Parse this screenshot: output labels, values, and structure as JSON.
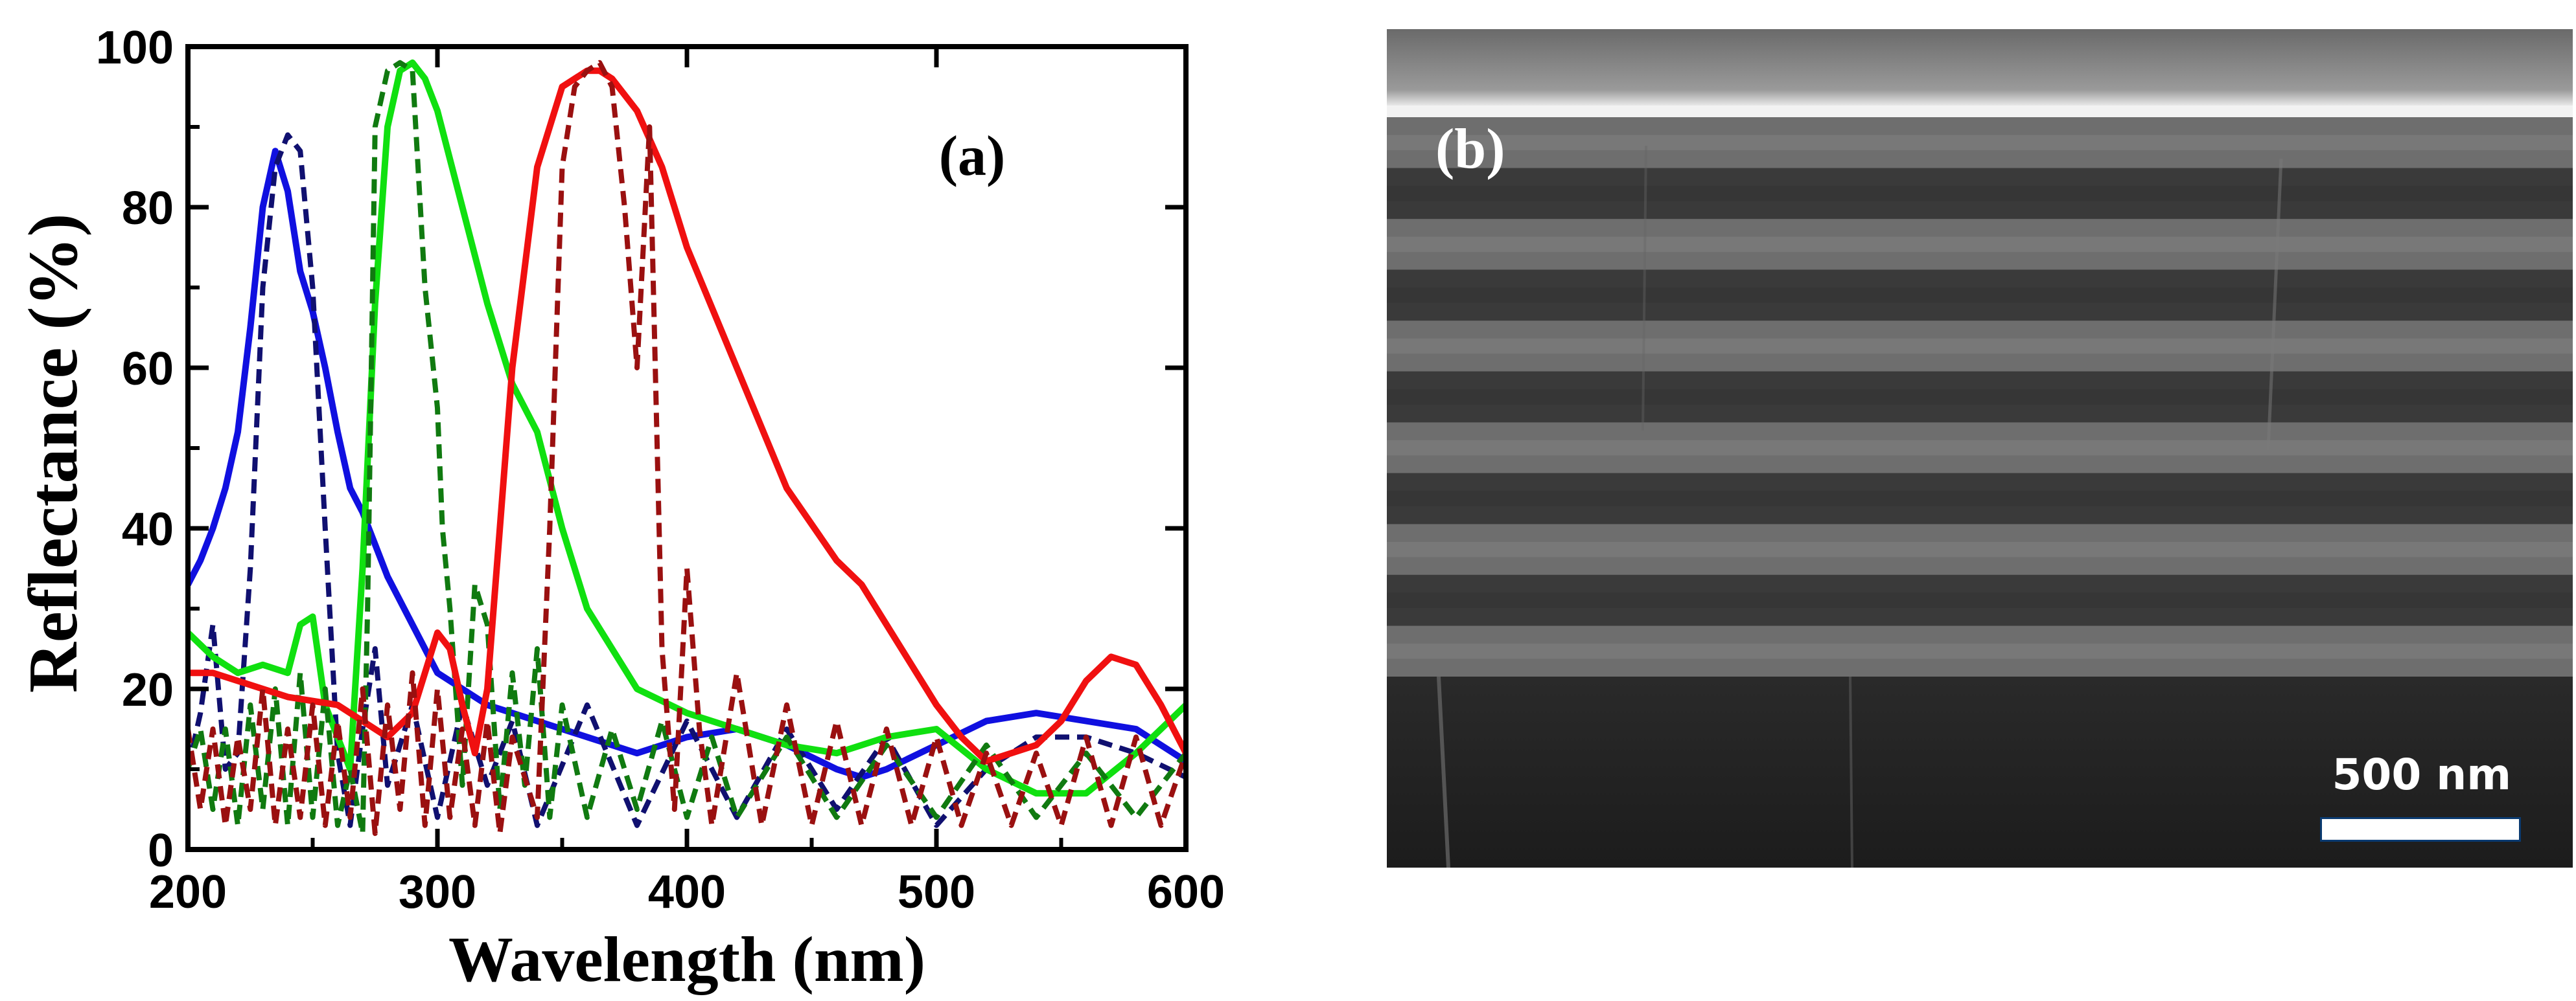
{
  "chart_data": {
    "type": "line",
    "title": "",
    "panel_label": "(a)",
    "xlabel": "Wavelength (nm)",
    "ylabel": "Reflectance (%)",
    "xlim": [
      200,
      600
    ],
    "ylim": [
      0,
      100
    ],
    "xticks": [
      200,
      300,
      400,
      500,
      600
    ],
    "yticks": [
      0,
      20,
      40,
      60,
      80,
      100
    ],
    "legend": "none",
    "series": [
      {
        "name": "blue measured",
        "color": "#1010e0",
        "style": "solid",
        "x": [
          200,
          205,
          210,
          215,
          220,
          225,
          230,
          235,
          240,
          245,
          250,
          255,
          260,
          265,
          270,
          275,
          280,
          290,
          300,
          320,
          340,
          360,
          380,
          400,
          420,
          440,
          460,
          470,
          480,
          500,
          520,
          540,
          560,
          580,
          600
        ],
        "y": [
          33,
          36,
          40,
          45,
          52,
          65,
          80,
          87,
          82,
          72,
          67,
          60,
          52,
          45,
          42,
          38,
          34,
          28,
          22,
          18,
          16,
          14,
          12,
          14,
          15,
          13,
          10,
          9,
          10,
          13,
          16,
          17,
          16,
          15,
          11
        ]
      },
      {
        "name": "blue simulated",
        "color": "#101070",
        "style": "dash",
        "x": [
          200,
          205,
          210,
          215,
          220,
          225,
          230,
          235,
          240,
          245,
          250,
          255,
          260,
          265,
          270,
          275,
          280,
          290,
          300,
          310,
          320,
          330,
          340,
          360,
          380,
          400,
          420,
          440,
          460,
          480,
          500,
          520,
          540,
          560,
          580,
          600
        ],
        "y": [
          10,
          17,
          28,
          10,
          12,
          35,
          70,
          85,
          89,
          87,
          70,
          40,
          12,
          3,
          15,
          25,
          8,
          18,
          4,
          18,
          8,
          16,
          3,
          18,
          3,
          16,
          4,
          15,
          5,
          14,
          3,
          10,
          14,
          14,
          12,
          9
        ]
      },
      {
        "name": "green measured",
        "color": "#10e010",
        "style": "solid",
        "x": [
          200,
          210,
          220,
          230,
          240,
          245,
          250,
          255,
          260,
          265,
          270,
          275,
          280,
          285,
          290,
          295,
          300,
          310,
          320,
          330,
          340,
          350,
          360,
          370,
          380,
          400,
          420,
          440,
          460,
          480,
          500,
          520,
          540,
          560,
          580,
          600
        ],
        "y": [
          27,
          24,
          22,
          23,
          22,
          28,
          29,
          18,
          14,
          10,
          35,
          68,
          90,
          97,
          98,
          96,
          92,
          80,
          68,
          58,
          52,
          40,
          30,
          25,
          20,
          17,
          15,
          13,
          12,
          14,
          15,
          10,
          7,
          7,
          12,
          18
        ]
      },
      {
        "name": "green simulated",
        "color": "#107a10",
        "style": "dash",
        "x": [
          200,
          205,
          210,
          215,
          220,
          225,
          230,
          235,
          240,
          245,
          250,
          255,
          260,
          265,
          270,
          272,
          275,
          280,
          285,
          290,
          295,
          300,
          302,
          305,
          310,
          315,
          320,
          325,
          330,
          335,
          340,
          345,
          350,
          360,
          370,
          380,
          390,
          400,
          410,
          420,
          440,
          460,
          480,
          500,
          520,
          540,
          560,
          580,
          600
        ],
        "y": [
          10,
          15,
          5,
          15,
          3,
          18,
          5,
          20,
          3,
          22,
          4,
          20,
          3,
          10,
          2,
          30,
          90,
          97,
          98,
          97,
          70,
          55,
          40,
          30,
          8,
          33,
          28,
          5,
          22,
          8,
          25,
          4,
          18,
          4,
          15,
          5,
          16,
          4,
          14,
          4,
          14,
          4,
          13,
          4,
          13,
          4,
          12,
          4,
          12
        ]
      },
      {
        "name": "red measured",
        "color": "#f01010",
        "style": "solid",
        "x": [
          200,
          210,
          220,
          240,
          260,
          270,
          280,
          290,
          300,
          305,
          310,
          315,
          320,
          325,
          330,
          340,
          350,
          360,
          365,
          370,
          380,
          390,
          400,
          420,
          440,
          460,
          470,
          480,
          500,
          510,
          520,
          530,
          540,
          550,
          560,
          570,
          580,
          590,
          600
        ],
        "y": [
          22,
          22,
          21,
          19,
          18,
          16,
          14,
          17,
          27,
          25,
          18,
          12,
          20,
          40,
          60,
          85,
          95,
          97,
          97,
          96,
          92,
          85,
          75,
          60,
          45,
          36,
          33,
          28,
          18,
          14,
          11,
          12,
          13,
          16,
          21,
          24,
          23,
          18,
          12
        ]
      },
      {
        "name": "red simulated",
        "color": "#9a1010",
        "style": "dash",
        "x": [
          200,
          205,
          210,
          215,
          220,
          225,
          230,
          235,
          240,
          245,
          250,
          255,
          260,
          265,
          270,
          275,
          280,
          285,
          290,
          295,
          300,
          305,
          310,
          315,
          320,
          325,
          330,
          340,
          345,
          350,
          355,
          360,
          365,
          370,
          375,
          380,
          385,
          390,
          395,
          400,
          405,
          410,
          420,
          430,
          440,
          450,
          460,
          470,
          480,
          490,
          500,
          510,
          520,
          530,
          540,
          550,
          560,
          570,
          580,
          590,
          600
        ],
        "y": [
          15,
          5,
          15,
          3,
          14,
          5,
          20,
          3,
          15,
          4,
          18,
          3,
          16,
          4,
          20,
          2,
          18,
          5,
          22,
          3,
          20,
          4,
          15,
          3,
          16,
          2,
          14,
          4,
          40,
          85,
          95,
          97,
          98,
          95,
          80,
          60,
          90,
          25,
          5,
          35,
          15,
          3,
          22,
          3,
          18,
          3,
          16,
          3,
          15,
          3,
          14,
          3,
          12,
          3,
          12,
          3,
          14,
          3,
          14,
          3,
          12
        ]
      }
    ]
  },
  "sem": {
    "panel_label": "(b)",
    "scale_label": "500 nm"
  }
}
